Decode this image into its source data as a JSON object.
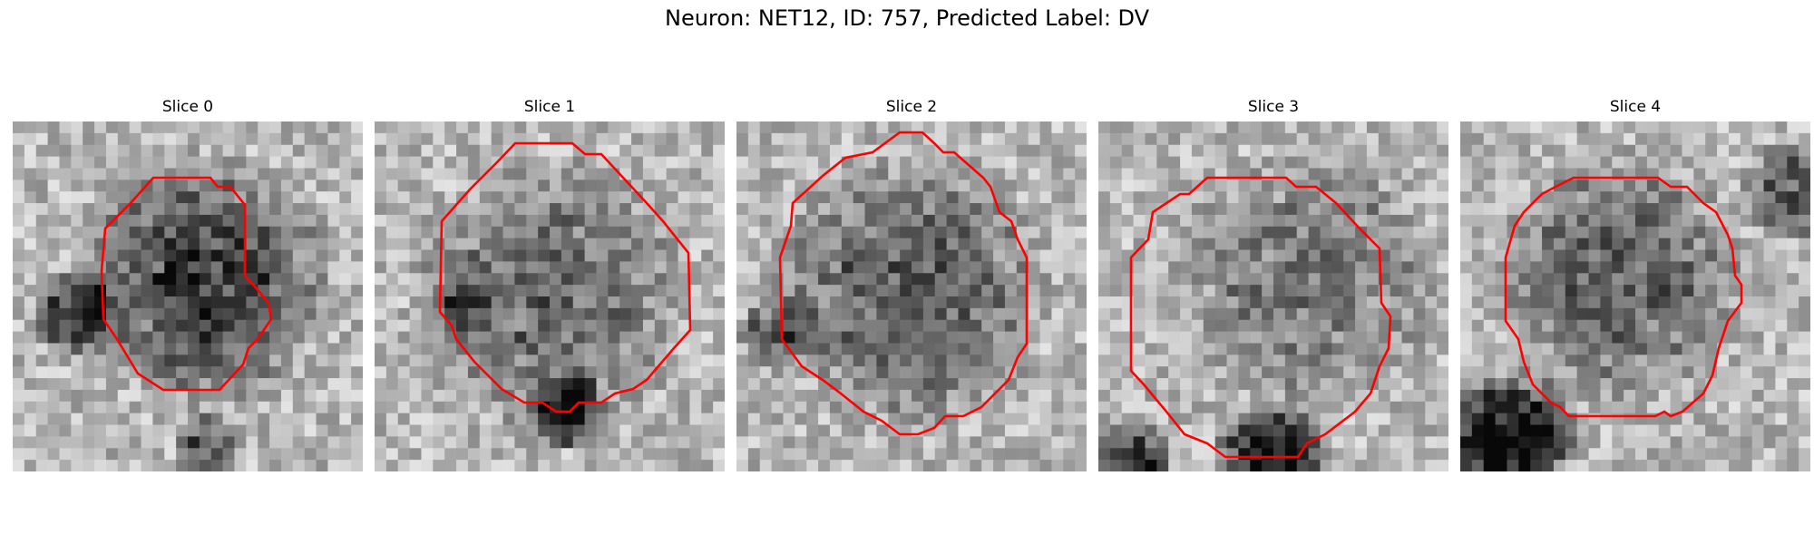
{
  "figure": {
    "suptitle": "Neuron: NET12, ID: 757, Predicted Label: DV",
    "contour_color": "#ff0000",
    "colormap": "gray"
  },
  "slices": [
    {
      "title": "Slice 0"
    },
    {
      "title": "Slice 1"
    },
    {
      "title": "Slice 2"
    },
    {
      "title": "Slice 3"
    },
    {
      "title": "Slice 4"
    }
  ]
}
